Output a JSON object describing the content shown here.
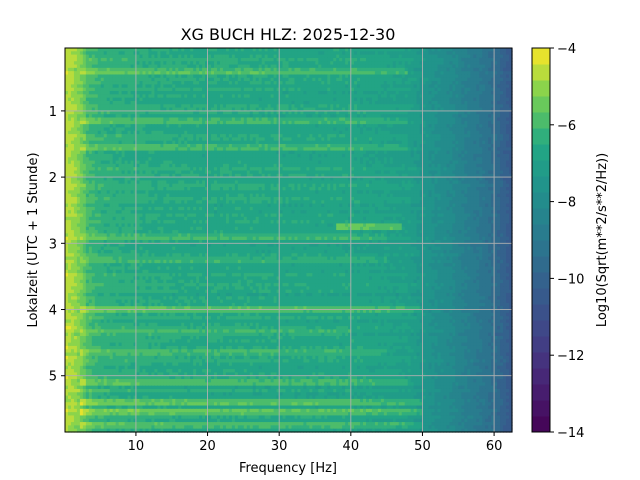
{
  "chart_data": {
    "type": "heatmap",
    "title": "XG BUCH  HLZ: 2025-12-30",
    "xlabel": "Frequency [Hz]",
    "ylabel": "Lokalzeit (UTC + 1 Stunde)",
    "x_range": [
      0.1,
      62.5
    ],
    "y_range": [
      0.05,
      5.85
    ],
    "x_ticks": [
      10,
      20,
      30,
      40,
      50,
      60
    ],
    "x_tick_labels": [
      "10",
      "20",
      "30",
      "40",
      "50",
      "60"
    ],
    "y_ticks": [
      1,
      2,
      3,
      4,
      5
    ],
    "y_tick_labels": [
      "1",
      "2",
      "3",
      "4",
      "5"
    ],
    "y_inverted": true,
    "grid": true,
    "colormap": "viridis",
    "colorbar": {
      "label": "Log10(Sqrt(m**2/s**2/Hz))",
      "range": [
        -14,
        -4
      ],
      "ticks": [
        -4,
        -6,
        -8,
        -10,
        -12,
        -14
      ],
      "tick_labels": [
        "−4",
        "−6",
        "−8",
        "−10",
        "−12",
        "−14"
      ],
      "levels": 24
    },
    "frequency_profile": {
      "freq_hz": [
        0.1,
        1,
        2,
        3,
        5,
        8,
        12,
        18,
        25,
        30,
        35,
        40,
        45,
        48,
        50,
        52,
        54,
        56,
        58,
        60,
        62.5
      ],
      "log10_amplitude": [
        -4.9,
        -5.0,
        -5.4,
        -5.9,
        -6.3,
        -6.4,
        -6.5,
        -6.6,
        -6.6,
        -6.65,
        -6.7,
        -6.7,
        -6.9,
        -7.0,
        -7.4,
        -7.8,
        -8.1,
        -8.6,
        -9.0,
        -9.5,
        -10.5
      ]
    },
    "features": [
      {
        "time": 0.4,
        "f_start": 2,
        "f_end": 48,
        "offset": 0.7
      },
      {
        "time": 1.15,
        "f_start": 2,
        "f_end": 48,
        "offset": 0.5
      },
      {
        "time": 1.55,
        "f_start": 2,
        "f_end": 48,
        "offset": 0.5
      },
      {
        "time": 2.75,
        "f_start": 38,
        "f_end": 47,
        "offset": 1.2
      },
      {
        "time": 2.9,
        "f_start": 2,
        "f_end": 45,
        "offset": 0.4
      },
      {
        "time": 3.25,
        "f_start": 2,
        "f_end": 45,
        "offset": 0.5
      },
      {
        "time": 4.0,
        "f_start": 2,
        "f_end": 50,
        "offset": 0.8
      },
      {
        "time": 4.35,
        "f_start": 2,
        "f_end": 40,
        "offset": 0.5
      },
      {
        "time": 4.65,
        "f_start": 2,
        "f_end": 45,
        "offset": 0.5
      },
      {
        "time": 5.1,
        "f_start": 2,
        "f_end": 48,
        "offset": 0.6
      },
      {
        "time": 5.4,
        "f_start": 2,
        "f_end": 50,
        "offset": 0.8
      },
      {
        "time": 5.55,
        "f_start": 2,
        "f_end": 50,
        "offset": 0.9
      },
      {
        "time": 5.75,
        "f_start": 2,
        "f_end": 50,
        "offset": 0.8
      }
    ]
  }
}
